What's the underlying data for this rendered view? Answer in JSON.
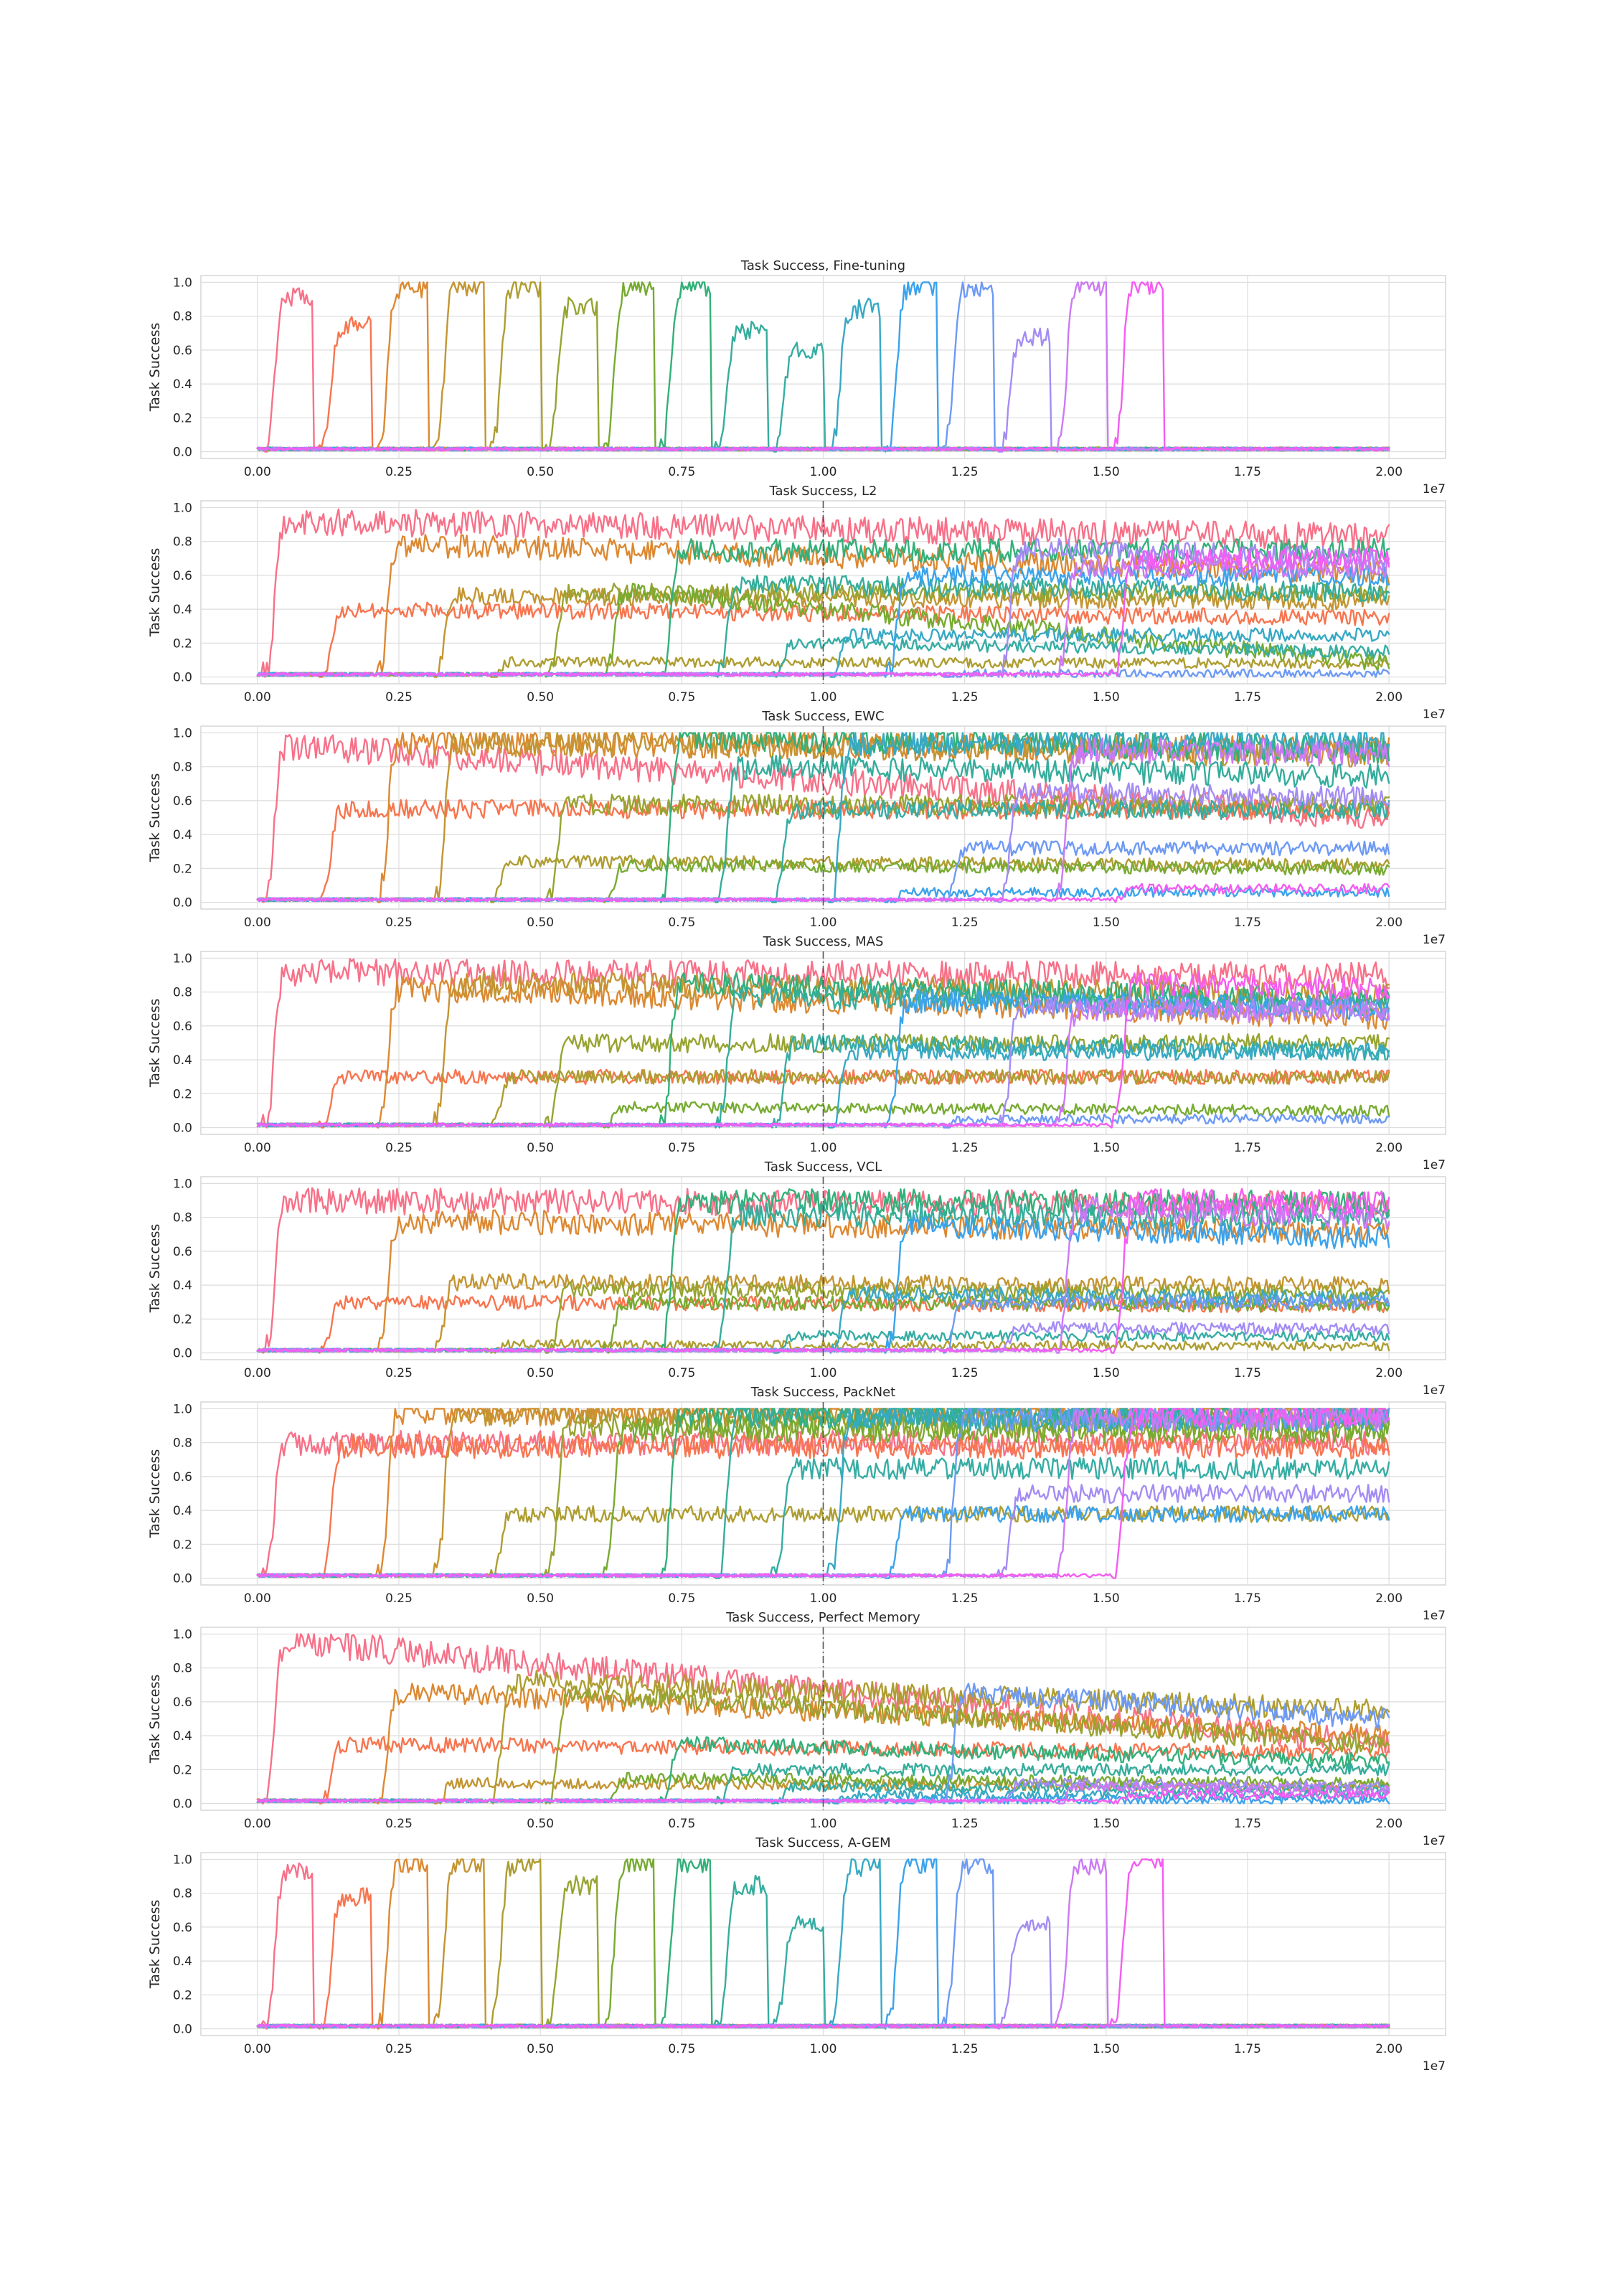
{
  "figure": {
    "y_axis_label": "Task Success",
    "x_offset_label": "1e7"
  },
  "colors": {
    "palette": [
      "#f77189",
      "#f7754f",
      "#dc8932",
      "#c39532",
      "#ae9d31",
      "#97a431",
      "#77ab31",
      "#33b07a",
      "#35ad9c",
      "#36ada4",
      "#38a9c5",
      "#3ba3ec",
      "#6e9af4",
      "#a48cf4",
      "#cc7af4",
      "#f45cf2",
      "#f565cc",
      "#f66bad",
      "#f56f9b"
    ],
    "grid": "#dcdcdc",
    "divider": "#555555"
  },
  "chart_data": [
    {
      "type": "line",
      "title": "Task Success, Fine-tuning",
      "xlabel": "",
      "ylabel": "Task Success",
      "x_ticks": [
        0.0,
        0.25,
        0.5,
        0.75,
        1.0,
        1.25,
        1.5,
        1.75,
        2.0
      ],
      "x_tick_labels": [
        "0.00",
        "0.25",
        "0.50",
        "0.75",
        "1.00",
        "1.25",
        "1.50",
        "1.75",
        "2.00"
      ],
      "x_scale_label": "1e7",
      "y_ticks": [
        0.0,
        0.2,
        0.4,
        0.6,
        0.8,
        1.0
      ],
      "y_tick_labels": [
        "0.0",
        "0.2",
        "0.4",
        "0.6",
        "0.8",
        "1.0"
      ],
      "xlim": [
        -0.1,
        2.1
      ],
      "ylim": [
        -0.04,
        1.04
      ],
      "grid": true,
      "divider_at": null,
      "mode": "finetune",
      "task_plateaus": [
        0.92,
        0.75,
        0.98,
        0.99,
        0.97,
        0.86,
        0.98,
        0.99,
        0.72,
        0.6,
        0.85,
        0.99,
        0.98,
        0.68,
        0.99,
        0.99
      ]
    },
    {
      "type": "line",
      "title": "Task Success, L2",
      "xlabel": "",
      "ylabel": "Task Success",
      "x_ticks": [
        0.0,
        0.25,
        0.5,
        0.75,
        1.0,
        1.25,
        1.5,
        1.75,
        2.0
      ],
      "x_tick_labels": [
        "0.00",
        "0.25",
        "0.50",
        "0.75",
        "1.00",
        "1.25",
        "1.50",
        "1.75",
        "2.00"
      ],
      "x_scale_label": "1e7",
      "y_ticks": [
        0.0,
        0.2,
        0.4,
        0.6,
        0.8,
        1.0
      ],
      "y_tick_labels": [
        "0.0",
        "0.2",
        "0.4",
        "0.6",
        "0.8",
        "1.0"
      ],
      "xlim": [
        -0.1,
        2.1
      ],
      "ylim": [
        -0.04,
        1.04
      ],
      "grid": true,
      "divider_at": 1.0,
      "mode": "continual",
      "task_plateaus": [
        0.92,
        0.4,
        0.78,
        0.48,
        0.09,
        0.5,
        0.5,
        0.75,
        0.55,
        0.2,
        0.25,
        0.6,
        0.02,
        0.75,
        0.65,
        0.7
      ],
      "task_final": [
        0.83,
        0.35,
        0.62,
        0.45,
        0.08,
        0.5,
        0.08,
        0.75,
        0.5,
        0.15,
        0.25,
        0.6,
        0.02,
        0.7,
        0.65,
        0.7
      ]
    },
    {
      "type": "line",
      "title": "Task Success, EWC",
      "xlabel": "",
      "ylabel": "Task Success",
      "x_ticks": [
        0.0,
        0.25,
        0.5,
        0.75,
        1.0,
        1.25,
        1.5,
        1.75,
        2.0
      ],
      "x_tick_labels": [
        "0.00",
        "0.25",
        "0.50",
        "0.75",
        "1.00",
        "1.25",
        "1.50",
        "1.75",
        "2.00"
      ],
      "x_scale_label": "1e7",
      "y_ticks": [
        0.0,
        0.2,
        0.4,
        0.6,
        0.8,
        1.0
      ],
      "y_tick_labels": [
        "0.0",
        "0.2",
        "0.4",
        "0.6",
        "0.8",
        "1.0"
      ],
      "xlim": [
        -0.1,
        2.1
      ],
      "ylim": [
        -0.04,
        1.04
      ],
      "grid": true,
      "divider_at": 1.0,
      "mode": "continual",
      "task_plateaus": [
        0.92,
        0.55,
        0.95,
        0.95,
        0.24,
        0.58,
        0.22,
        0.98,
        0.8,
        0.55,
        0.95,
        0.06,
        0.32,
        0.65,
        0.9,
        0.08
      ],
      "task_final": [
        0.5,
        0.55,
        0.9,
        0.88,
        0.22,
        0.58,
        0.2,
        0.9,
        0.75,
        0.55,
        0.95,
        0.06,
        0.32,
        0.62,
        0.88,
        0.08
      ]
    },
    {
      "type": "line",
      "title": "Task Success, MAS",
      "xlabel": "",
      "ylabel": "Task Success",
      "x_ticks": [
        0.0,
        0.25,
        0.5,
        0.75,
        1.0,
        1.25,
        1.5,
        1.75,
        2.0
      ],
      "x_tick_labels": [
        "0.00",
        "0.25",
        "0.50",
        "0.75",
        "1.00",
        "1.25",
        "1.50",
        "1.75",
        "2.00"
      ],
      "x_scale_label": "1e7",
      "y_ticks": [
        0.0,
        0.2,
        0.4,
        0.6,
        0.8,
        1.0
      ],
      "y_tick_labels": [
        "0.0",
        "0.2",
        "0.4",
        "0.6",
        "0.8",
        "1.0"
      ],
      "xlim": [
        -0.1,
        2.1
      ],
      "ylim": [
        -0.04,
        1.04
      ],
      "grid": true,
      "divider_at": 1.0,
      "mode": "continual",
      "task_plateaus": [
        0.92,
        0.3,
        0.82,
        0.85,
        0.3,
        0.5,
        0.12,
        0.85,
        0.78,
        0.5,
        0.45,
        0.75,
        0.05,
        0.72,
        0.7,
        0.85
      ],
      "task_final": [
        0.9,
        0.3,
        0.65,
        0.78,
        0.3,
        0.5,
        0.1,
        0.75,
        0.72,
        0.45,
        0.45,
        0.7,
        0.05,
        0.7,
        0.68,
        0.82
      ]
    },
    {
      "type": "line",
      "title": "Task Success, VCL",
      "xlabel": "",
      "ylabel": "Task Success",
      "x_ticks": [
        0.0,
        0.25,
        0.5,
        0.75,
        1.0,
        1.25,
        1.5,
        1.75,
        2.0
      ],
      "x_tick_labels": [
        "0.00",
        "0.25",
        "0.50",
        "0.75",
        "1.00",
        "1.25",
        "1.50",
        "1.75",
        "2.00"
      ],
      "x_scale_label": "1e7",
      "y_ticks": [
        0.0,
        0.2,
        0.4,
        0.6,
        0.8,
        1.0
      ],
      "y_tick_labels": [
        "0.0",
        "0.2",
        "0.4",
        "0.6",
        "0.8",
        "1.0"
      ],
      "xlim": [
        -0.1,
        2.1
      ],
      "ylim": [
        -0.04,
        1.04
      ],
      "grid": true,
      "divider_at": 1.0,
      "mode": "continual",
      "task_plateaus": [
        0.9,
        0.3,
        0.78,
        0.42,
        0.05,
        0.38,
        0.3,
        0.9,
        0.82,
        0.1,
        0.35,
        0.75,
        0.3,
        0.15,
        0.85,
        0.9
      ],
      "task_final": [
        0.88,
        0.28,
        0.72,
        0.4,
        0.04,
        0.35,
        0.28,
        0.88,
        0.8,
        0.1,
        0.32,
        0.68,
        0.3,
        0.14,
        0.8,
        0.88
      ]
    },
    {
      "type": "line",
      "title": "Task Success, PackNet",
      "xlabel": "",
      "ylabel": "Task Success",
      "x_ticks": [
        0.0,
        0.25,
        0.5,
        0.75,
        1.0,
        1.25,
        1.5,
        1.75,
        2.0
      ],
      "x_tick_labels": [
        "0.00",
        "0.25",
        "0.50",
        "0.75",
        "1.00",
        "1.25",
        "1.50",
        "1.75",
        "2.00"
      ],
      "x_scale_label": "1e7",
      "y_ticks": [
        0.0,
        0.2,
        0.4,
        0.6,
        0.8,
        1.0
      ],
      "y_tick_labels": [
        "0.0",
        "0.2",
        "0.4",
        "0.6",
        "0.8",
        "1.0"
      ],
      "xlim": [
        -0.1,
        2.1
      ],
      "ylim": [
        -0.04,
        1.04
      ],
      "grid": true,
      "divider_at": 1.0,
      "mode": "continual",
      "task_plateaus": [
        0.8,
        0.78,
        0.99,
        0.98,
        0.38,
        0.9,
        0.88,
        0.98,
        0.97,
        0.65,
        0.95,
        0.38,
        0.95,
        0.5,
        0.95,
        0.97
      ],
      "task_final": [
        0.8,
        0.78,
        0.99,
        0.98,
        0.38,
        0.9,
        0.88,
        0.98,
        0.97,
        0.65,
        0.95,
        0.38,
        0.95,
        0.5,
        0.95,
        0.97
      ]
    },
    {
      "type": "line",
      "title": "Task Success, Perfect Memory",
      "xlabel": "",
      "ylabel": "Task Success",
      "x_ticks": [
        0.0,
        0.25,
        0.5,
        0.75,
        1.0,
        1.25,
        1.5,
        1.75,
        2.0
      ],
      "x_tick_labels": [
        "0.00",
        "0.25",
        "0.50",
        "0.75",
        "1.00",
        "1.25",
        "1.50",
        "1.75",
        "2.00"
      ],
      "x_scale_label": "1e7",
      "y_ticks": [
        0.0,
        0.2,
        0.4,
        0.6,
        0.8,
        1.0
      ],
      "y_tick_labels": [
        "0.0",
        "0.2",
        "0.4",
        "0.6",
        "0.8",
        "1.0"
      ],
      "xlim": [
        -0.1,
        2.1
      ],
      "ylim": [
        -0.04,
        1.04
      ],
      "grid": true,
      "divider_at": 1.0,
      "mode": "continual",
      "task_plateaus": [
        0.95,
        0.35,
        0.65,
        0.12,
        0.72,
        0.65,
        0.15,
        0.35,
        0.2,
        0.1,
        0.05,
        0.02,
        0.65,
        0.12,
        0.1,
        0.05
      ],
      "task_final": [
        0.35,
        0.3,
        0.4,
        0.1,
        0.55,
        0.35,
        0.12,
        0.25,
        0.2,
        0.08,
        0.05,
        0.02,
        0.5,
        0.1,
        0.08,
        0.05
      ]
    },
    {
      "type": "line",
      "title": "Task Success, A-GEM",
      "xlabel": "",
      "ylabel": "Task Success",
      "x_ticks": [
        0.0,
        0.25,
        0.5,
        0.75,
        1.0,
        1.25,
        1.5,
        1.75,
        2.0
      ],
      "x_tick_labels": [
        "0.00",
        "0.25",
        "0.50",
        "0.75",
        "1.00",
        "1.25",
        "1.50",
        "1.75",
        "2.00"
      ],
      "x_scale_label": "1e7",
      "y_ticks": [
        0.0,
        0.2,
        0.4,
        0.6,
        0.8,
        1.0
      ],
      "y_tick_labels": [
        "0.0",
        "0.2",
        "0.4",
        "0.6",
        "0.8",
        "1.0"
      ],
      "xlim": [
        -0.1,
        2.1
      ],
      "ylim": [
        -0.04,
        1.04
      ],
      "grid": true,
      "divider_at": null,
      "mode": "finetune",
      "task_plateaus": [
        0.92,
        0.78,
        0.98,
        0.99,
        0.98,
        0.85,
        0.99,
        0.99,
        0.85,
        0.62,
        0.97,
        0.99,
        0.98,
        0.62,
        0.98,
        0.99
      ]
    }
  ]
}
